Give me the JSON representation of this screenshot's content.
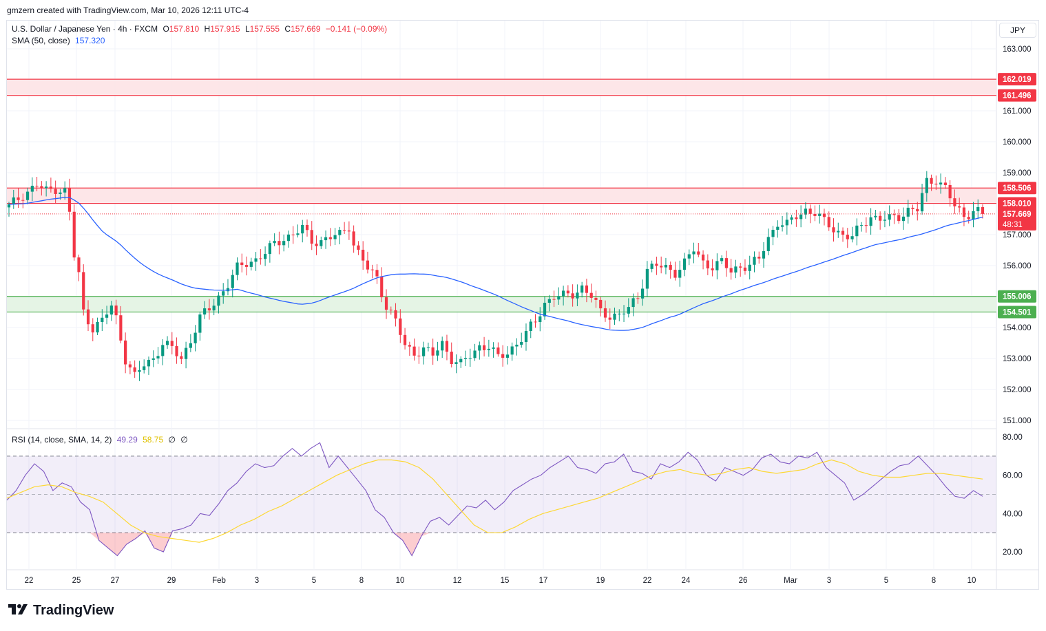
{
  "header": {
    "attribution": "gmzern created with TradingView.com, Mar 10, 2026 12:11 UTC-4"
  },
  "legend": {
    "symbol": "U.S. Dollar / Japanese Yen · 4h · FXCM",
    "o_label": "O",
    "o_value": "157.810",
    "h_label": "H",
    "h_value": "157.915",
    "l_label": "L",
    "l_value": "157.555",
    "c_label": "C",
    "c_value": "157.669",
    "change": "−0.141 (−0.09%)",
    "sma_label": "SMA (50, close)",
    "sma_value": "157.320",
    "rsi_label": "RSI (14, close, SMA, 14, 2)",
    "rsi_value": "49.29",
    "rsi_ma_value": "58.75",
    "rsi_extra1": "∅",
    "rsi_extra2": "∅"
  },
  "unit_button": "JPY",
  "logo": {
    "text": "TradingView",
    "mark_icon": "tradingview-logo-icon"
  },
  "colors": {
    "up": "#089981",
    "down": "#f23645",
    "sma": "#2962ff",
    "rsi": "#7e57c2",
    "rsi_ma": "#fdd835",
    "resistance_fill": "#fde2e4",
    "resistance_line": "#f23645",
    "support_fill": "#e0f2e1",
    "support_line": "#4caf50"
  },
  "chart_data": [
    {
      "type": "candlestick",
      "symbol": "USDJPY",
      "timeframe": "4h",
      "x_tick_labels": [
        "22",
        "25",
        "27",
        "29",
        "Feb",
        "3",
        "5",
        "8",
        "10",
        "12",
        "15",
        "17",
        "19",
        "22",
        "24",
        "26",
        "Mar",
        "3",
        "5",
        "8",
        "10"
      ],
      "y_tick_labels": [
        "163.000",
        "161.000",
        "160.000",
        "159.000",
        "157.000",
        "156.000",
        "154.000",
        "153.000",
        "152.000",
        "151.000"
      ],
      "ylim": [
        150.6,
        164.2
      ],
      "price_tags": [
        {
          "value": "162.019",
          "kind": "resistance"
        },
        {
          "value": "161.496",
          "kind": "resistance"
        },
        {
          "value": "158.506",
          "kind": "resistance"
        },
        {
          "value": "158.010",
          "kind": "resistance"
        },
        {
          "value": "157.669",
          "kind": "last",
          "countdown": "48:31"
        },
        {
          "value": "155.006",
          "kind": "support"
        },
        {
          "value": "154.501",
          "kind": "support"
        }
      ],
      "zones": [
        {
          "kind": "resistance",
          "low": 161.496,
          "high": 162.019
        },
        {
          "kind": "resistance",
          "low": 158.01,
          "high": 158.506
        },
        {
          "kind": "support",
          "low": 154.501,
          "high": 155.006
        }
      ],
      "last_price": 157.669,
      "price_path": [
        [
          0,
          157.9
        ],
        [
          3,
          158.3
        ],
        [
          6,
          158.6
        ],
        [
          8,
          158.4
        ],
        [
          10,
          158.5
        ],
        [
          12,
          158.4
        ],
        [
          13,
          157.7
        ],
        [
          14,
          156.3
        ],
        [
          15,
          155.7
        ],
        [
          16,
          154.5
        ],
        [
          18,
          154.0
        ],
        [
          20,
          154.2
        ],
        [
          22,
          154.7
        ],
        [
          23,
          154.3
        ],
        [
          25,
          153.0
        ],
        [
          27,
          152.4
        ],
        [
          29,
          152.8
        ],
        [
          31,
          153.0
        ],
        [
          33,
          153.5
        ],
        [
          35,
          153.3
        ],
        [
          37,
          153.0
        ],
        [
          39,
          153.6
        ],
        [
          41,
          154.3
        ],
        [
          43,
          154.6
        ],
        [
          45,
          155.0
        ],
        [
          47,
          155.4
        ],
        [
          49,
          155.9
        ],
        [
          51,
          156.1
        ],
        [
          53,
          156.2
        ],
        [
          55,
          156.4
        ],
        [
          57,
          156.7
        ],
        [
          59,
          156.9
        ],
        [
          61,
          157.0
        ],
        [
          63,
          157.2
        ],
        [
          65,
          156.8
        ],
        [
          67,
          156.8
        ],
        [
          69,
          156.9
        ],
        [
          71,
          157.0
        ],
        [
          73,
          157.3
        ],
        [
          74,
          156.7
        ],
        [
          75,
          156.4
        ],
        [
          77,
          155.9
        ],
        [
          79,
          155.6
        ],
        [
          81,
          154.7
        ],
        [
          83,
          154.2
        ],
        [
          85,
          153.4
        ],
        [
          87,
          153.2
        ],
        [
          89,
          153.3
        ],
        [
          91,
          153.1
        ],
        [
          93,
          153.5
        ],
        [
          95,
          153.0
        ],
        [
          97,
          152.8
        ],
        [
          99,
          153.1
        ],
        [
          101,
          153.4
        ],
        [
          103,
          153.4
        ],
        [
          105,
          153.0
        ],
        [
          107,
          153.2
        ],
        [
          109,
          153.5
        ],
        [
          111,
          153.8
        ],
        [
          113,
          154.2
        ],
        [
          115,
          154.8
        ],
        [
          117,
          155.0
        ],
        [
          119,
          155.0
        ],
        [
          121,
          155.1
        ],
        [
          123,
          155.3
        ],
        [
          125,
          155.0
        ],
        [
          127,
          154.5
        ],
        [
          129,
          154.4
        ],
        [
          131,
          154.4
        ],
        [
          133,
          154.6
        ],
        [
          135,
          155.0
        ],
        [
          137,
          155.9
        ],
        [
          139,
          156.0
        ],
        [
          141,
          155.9
        ],
        [
          143,
          155.8
        ],
        [
          145,
          156.1
        ],
        [
          147,
          156.5
        ],
        [
          149,
          156.1
        ],
        [
          151,
          156.0
        ],
        [
          153,
          156.1
        ],
        [
          155,
          155.8
        ],
        [
          157,
          156.0
        ],
        [
          159,
          156.0
        ],
        [
          161,
          156.2
        ],
        [
          163,
          156.9
        ],
        [
          165,
          157.4
        ],
        [
          167,
          157.3
        ],
        [
          169,
          157.6
        ],
        [
          171,
          157.8
        ],
        [
          173,
          157.7
        ],
        [
          175,
          157.4
        ],
        [
          177,
          157.2
        ],
        [
          179,
          157.0
        ],
        [
          181,
          156.9
        ],
        [
          183,
          157.3
        ],
        [
          185,
          157.6
        ],
        [
          187,
          157.5
        ],
        [
          189,
          157.5
        ],
        [
          191,
          157.6
        ],
        [
          193,
          157.8
        ],
        [
          195,
          157.8
        ],
        [
          197,
          158.7
        ],
        [
          199,
          158.8
        ],
        [
          201,
          158.5
        ],
        [
          203,
          157.9
        ],
        [
          205,
          157.6
        ],
        [
          207,
          157.8
        ],
        [
          209,
          157.7
        ]
      ],
      "sma_label": "SMA (50, close)",
      "sma_last": 157.32
    },
    {
      "type": "line",
      "title": "RSI (14, close, SMA, 14, 2)",
      "y_tick_labels": [
        "80.00",
        "60.00",
        "40.00",
        "20.00"
      ],
      "ylim": [
        10,
        82
      ],
      "bands": {
        "upper": 70,
        "middle": 50,
        "lower": 30
      },
      "rsi_last": 49.29,
      "rsi_ma_last": 58.75,
      "series": [
        {
          "role": "rsi",
          "values": [
            47,
            52,
            60,
            66,
            62,
            52,
            56,
            54,
            46,
            42,
            26,
            22,
            18,
            24,
            27,
            31,
            22,
            20,
            31,
            32,
            34,
            40,
            39,
            45,
            52,
            56,
            62,
            66,
            64,
            65,
            70,
            74,
            70,
            74,
            77,
            64,
            70,
            64,
            58,
            52,
            42,
            38,
            30,
            26,
            18,
            28,
            36,
            38,
            34,
            39,
            44,
            43,
            47,
            42,
            46,
            52,
            55,
            58,
            60,
            64,
            67,
            70,
            64,
            63,
            61,
            66,
            67,
            71,
            62,
            61,
            58,
            66,
            64,
            67,
            72,
            68,
            60,
            57,
            64,
            62,
            60,
            63,
            69,
            71,
            67,
            66,
            70,
            69,
            72,
            64,
            60,
            56,
            47,
            50,
            54,
            58,
            62,
            65,
            66,
            70,
            65,
            60,
            54,
            49,
            48,
            52,
            49
          ]
        },
        {
          "role": "rsi_ma",
          "values": [
            48,
            51,
            54,
            55,
            54,
            51,
            49,
            46,
            40,
            34,
            30,
            28,
            27,
            26,
            25,
            27,
            30,
            34,
            37,
            41,
            44,
            48,
            52,
            56,
            60,
            63,
            66,
            68,
            68,
            67,
            64,
            58,
            50,
            42,
            34,
            30,
            30,
            33,
            37,
            40,
            42,
            44,
            46,
            48,
            51,
            54,
            57,
            60,
            62,
            63,
            61,
            60,
            61,
            63,
            64,
            62,
            61,
            62,
            63,
            66,
            68,
            66,
            62,
            60,
            59,
            59,
            60,
            61,
            61,
            60,
            59,
            58
          ]
        }
      ]
    }
  ]
}
